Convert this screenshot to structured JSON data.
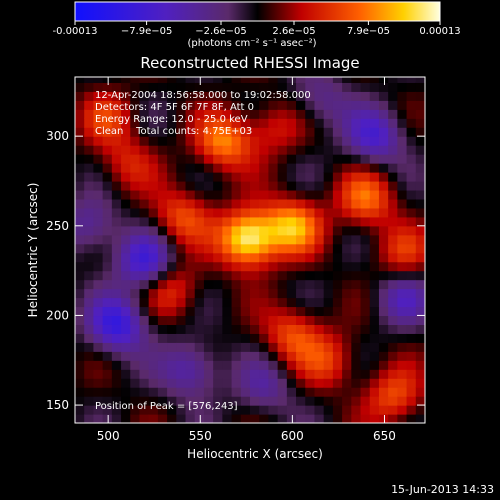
{
  "chart_data": {
    "type": "heatmap",
    "title": "Reconstructed RHESSI Image",
    "xlabel": "Heliocentric X (arcsec)",
    "ylabel": "Heliocentric Y (arcsec)",
    "xlim": [
      482,
      672
    ],
    "ylim": [
      140,
      333
    ],
    "x_ticks": [
      500,
      550,
      600,
      650
    ],
    "y_ticks": [
      150,
      200,
      250,
      300
    ],
    "colorbar": {
      "min": -0.00013,
      "max": 0.00013,
      "ticks": [
        -0.00013,
        -7.9e-05,
        -2.6e-05,
        2.6e-05,
        7.9e-05,
        0.00013
      ],
      "tick_labels": [
        "-0.00013",
        "−7.9e−05",
        "−2.6e−05",
        "2.6e−05",
        "7.9e−05",
        "0.00013"
      ],
      "unit_label": "(photons cm⁻² s⁻¹ asec⁻²)"
    },
    "annotations": [
      "12-Apr-2004 18:56:58.000 to 19:02:58.000",
      "Detectors: 4F 5F 6F 7F 8F, Att 0",
      "Energy Range: 12.0 - 25.0 keV",
      "Clean    Total counts: 4.75E+03"
    ],
    "peak_label": "Position of Peak = [576,243]",
    "peak": [
      576,
      243
    ],
    "sources": [
      {
        "x": 576,
        "y": 243,
        "value": 0.00013
      },
      {
        "x": 600,
        "y": 250,
        "value": 9e-05
      },
      {
        "x": 563,
        "y": 297,
        "value": 8e-05
      },
      {
        "x": 540,
        "y": 255,
        "value": 6e-05
      },
      {
        "x": 640,
        "y": 265,
        "value": 7e-05
      },
      {
        "x": 600,
        "y": 190,
        "value": 6e-05
      },
      {
        "x": 535,
        "y": 215,
        "value": 5e-05
      },
      {
        "x": 655,
        "y": 155,
        "value": 6e-05
      },
      {
        "x": 620,
        "y": 175,
        "value": 5e-05
      },
      {
        "x": 590,
        "y": 305,
        "value": 4e-05
      },
      {
        "x": 500,
        "y": 310,
        "value": 4.5e-05
      },
      {
        "x": 660,
        "y": 235,
        "value": 4.5e-05
      },
      {
        "x": 510,
        "y": 285,
        "value": 4e-05
      },
      {
        "x": 520,
        "y": 230,
        "value": -8e-05
      },
      {
        "x": 505,
        "y": 195,
        "value": -9e-05
      },
      {
        "x": 545,
        "y": 170,
        "value": -6e-05
      },
      {
        "x": 645,
        "y": 300,
        "value": -7e-05
      },
      {
        "x": 660,
        "y": 210,
        "value": -5e-05
      },
      {
        "x": 615,
        "y": 320,
        "value": -4e-05
      },
      {
        "x": 585,
        "y": 160,
        "value": -4e-05
      },
      {
        "x": 490,
        "y": 250,
        "value": -5e-05
      }
    ]
  },
  "footer": {
    "date_stamp": "15-Jun-2013 14:33"
  }
}
